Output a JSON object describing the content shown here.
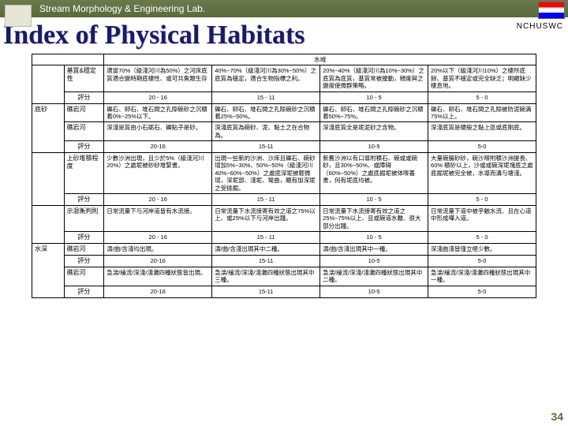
{
  "topbar": "Stream Morphology & Engineering Lab.",
  "corp": "NCHUSWC",
  "title": "Index of Physical Habitats",
  "pagenum": "34",
  "header_top": "水域",
  "rows": [
    {
      "label1": "",
      "label2": "基質&穩定性",
      "c": [
        "適當70%（級淺河川為50%）之河床底質適合變時期底棲性、或可共魚類生存",
        "40%~70%（級淺河川為30%~50%）之底質為穩定，適合生物指標之利。",
        "20%~40%（級淺河川為10%~30%）之底質為底質，基質常被擾動，頻度與之變度使微群策略。",
        "20%以下（級淺河川10%）之棲所底餘、基質不穩定或完全缺乏；明顯缺少棲息地。"
      ]
    },
    {
      "score": [
        "20 - 16",
        "15 - 11",
        "10 - 5",
        "5 - 0"
      ]
    },
    {
      "label1": "底砂",
      "row1sub": "居質孔隙步塊 例",
      "subrows": [
        {
          "sub": "礁岩河",
          "c": [
            "礫石、卵石、堆石間之孔隙碗砂之沉積着0%~25%以下。",
            "礫石、卵石、堆石間之孔隙碗砂之沉積着25%~50%。",
            "礫石、卵石、堆石間之孔隙碗砂之沉積着50%~75%。",
            "礫石、卵石、堆石間之孔隙被防泥碗満75%以上。"
          ]
        },
        {
          "sub": "礁岩河",
          "c": [
            "深淺是質由小石砺石、礫貼子是砂。",
            "深淺底質為碗砂、泥、黏土之在合物為。",
            "深淺底質全是坭泥砂之含物。",
            "深淺底質是硬般之黏上區或底剛底。"
          ]
        },
        {
          "score": [
            "20-16",
            "15-11",
            "10-5",
            "5-0"
          ]
        }
      ]
    },
    {
      "label1": "",
      "label2": "上砂堆積程度",
      "c": [
        "少數沙洲出現，且少於5%（級淺河川20%）之處坭被砂砂堆緊書。",
        "出現一些新的沙洲、沙床且礫石、碗砂增加5%~30%、50%~50%（級淺河川 40%~60%~50%）之處底深坭被輕微增，深坭部、淺坭、彎曲，颼有加深坭之受挑掘。",
        "新舊沙洲以有口導附積石、碗或或碗砂，且30%~50%、或障碍（60%~50%）之處底掘坭被体嘜著書，何有坭底均被。",
        "大量碗腸砂砂，碗沙嘜附積沙洲提長、60% 積砂以上，沙或或碗深坭塊底之處底掘坭被完全被，水導而溝与塘淺。"
      ]
    },
    {
      "score": [
        "20 - 16",
        "15 - 11",
        "10 - 5",
        "5 - 0"
      ]
    },
    {
      "label1": "",
      "label2": "示混衡判則",
      "c": [
        "日常流量下与河岸道皆有水流接。",
        "日常流量下水流接寄有效之道之75%以上、或25%以下与河岸出踐。",
        "日常流量下水流接寄有效之道之25%~75%以上、且或碗道水離、很大部分出踐。",
        "日常流量下道中被乎触水流、且在心道中形成嘩入道。"
      ]
    },
    {
      "score": [
        "20 - 16",
        "15 - 11",
        "10 - 5",
        "5 - 0"
      ]
    },
    {
      "label1": "水深",
      "label2": "礁岩河",
      "c": [
        "濤/曲/含淺均出現。",
        "濤/曲/含淺出現其中二種。",
        "濤/曲/含淺出現其中一種。",
        "深淺曲淺皆僅立極少數。"
      ],
      "colspan4": true
    },
    {
      "label1": "",
      "label2": "水深態樣性",
      "sub": "評分",
      "c": [
        "20-16",
        "15-11",
        "10-5",
        "5-0"
      ],
      "isScore": true
    },
    {
      "label1": "",
      "label2": "礁岩河",
      "c": [
        "急湍/緩流/深淺/淺灘四種狀態皆出現。",
        "急湍/緩流/深淺/淺灘四種狀態出現其中三種。",
        "急湍/緩流/深淺/淺灘四種狀態出現其中二種。",
        "急湍/緩流/深淺/淺灘四種狀態出現其中一種。"
      ]
    },
    {
      "score": [
        "20-16",
        "15-11",
        "10-5",
        "5-0"
      ]
    }
  ]
}
